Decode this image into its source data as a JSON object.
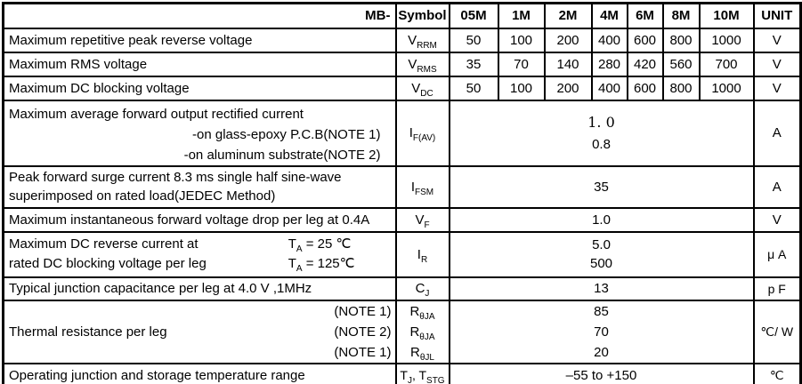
{
  "table": {
    "header": {
      "series": "MB-",
      "symbol": "Symbol",
      "models": [
        "05M",
        "1M",
        "2M",
        "4M",
        "6M",
        "8M",
        "10M"
      ],
      "unit": "UNIT"
    },
    "rows": {
      "vrrm": {
        "param": "Maximum repetitive peak reverse voltage",
        "symbol": [
          {
            "t": "V"
          },
          {
            "s": "RRM"
          }
        ],
        "values": [
          "50",
          "100",
          "200",
          "400",
          "600",
          "800",
          "1000"
        ],
        "unit": "V"
      },
      "vrms": {
        "param": "Maximum RMS voltage",
        "symbol": [
          {
            "t": "V"
          },
          {
            "s": "RMS"
          }
        ],
        "values": [
          "35",
          "70",
          "140",
          "280",
          "420",
          "560",
          "700"
        ],
        "unit": "V"
      },
      "vdc": {
        "param": "Maximum DC blocking voltage",
        "symbol": [
          {
            "t": "V"
          },
          {
            "s": "DC"
          }
        ],
        "values": [
          "50",
          "100",
          "200",
          "400",
          "600",
          "800",
          "1000"
        ],
        "unit": "V"
      },
      "ifav": {
        "param_line1": "Maximum average forward output rectified current",
        "param_line2": "-on glass-epoxy P.C.B(NOTE 1)",
        "param_line3": "-on aluminum substrate(NOTE 2)",
        "symbol": [
          {
            "t": "I"
          },
          {
            "s": "F(AV)"
          }
        ],
        "value1": "1. 0",
        "value2": "0.8",
        "unit": "A"
      },
      "ifsm": {
        "param_line1": "Peak forward surge current 8.3 ms single half sine-wave",
        "param_line2": "superimposed on rated load(JEDEC Method)",
        "symbol": [
          {
            "t": "I"
          },
          {
            "s": "FSM"
          }
        ],
        "value": "35",
        "unit": "A"
      },
      "vf": {
        "param": "Maximum instantaneous forward voltage drop per leg at 0.4A",
        "symbol": [
          {
            "t": "V"
          },
          {
            "s": "F"
          }
        ],
        "value": "1.0",
        "unit": "V"
      },
      "ir": {
        "param_line1": "Maximum DC reverse current at",
        "param_line2": "rated DC blocking voltage per leg",
        "cond1": [
          {
            "t": "T"
          },
          {
            "s": "A"
          },
          {
            "t": " = 25 ℃"
          }
        ],
        "cond2": [
          {
            "t": "T"
          },
          {
            "s": "A"
          },
          {
            "t": " = 125℃"
          }
        ],
        "symbol": [
          {
            "t": "I"
          },
          {
            "s": "R"
          }
        ],
        "value1": "5.0",
        "value2": "500",
        "unit": "μ A"
      },
      "cj": {
        "param": "Typical junction capacitance per leg at 4.0 V ,1MHz",
        "symbol": [
          {
            "t": "C"
          },
          {
            "s": "J"
          }
        ],
        "value": "13",
        "unit": "p F"
      },
      "rth": {
        "param": "Thermal resistance per leg",
        "note1": "(NOTE 1)",
        "note2": "(NOTE 2)",
        "note3": "(NOTE 1)",
        "symbol1": [
          {
            "t": "R"
          },
          {
            "s": "θJA"
          }
        ],
        "symbol2": [
          {
            "t": "R"
          },
          {
            "s": "θJA"
          }
        ],
        "symbol3": [
          {
            "t": "R"
          },
          {
            "s": "θJL"
          }
        ],
        "value1": "85",
        "value2": "70",
        "value3": "20",
        "unit": "℃/ W"
      },
      "tstg": {
        "param": "Operating junction and storage temperature range",
        "symbol": [
          {
            "t": "T"
          },
          {
            "s": "J"
          },
          {
            "t": ", T"
          },
          {
            "s": "STG"
          }
        ],
        "value": "–55 to +150",
        "unit": "℃"
      }
    }
  }
}
